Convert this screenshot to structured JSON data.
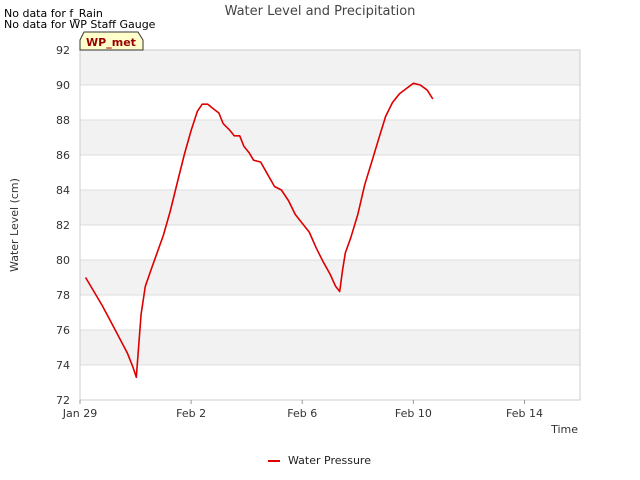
{
  "notices": [
    "No data for f_Rain",
    "No data for WP Staff Gauge"
  ],
  "chart_data": {
    "type": "line",
    "title": "Water Level and Precipitation",
    "xlabel": "Time",
    "ylabel": "Water Level (cm)",
    "ylim": [
      72,
      92
    ],
    "yticks": [
      72,
      74,
      76,
      78,
      80,
      82,
      84,
      86,
      88,
      90,
      92
    ],
    "xlim": [
      "Jan 29",
      "Feb 16"
    ],
    "xticks": [
      {
        "label": "Jan 29",
        "day": 0
      },
      {
        "label": "Feb 2",
        "day": 4
      },
      {
        "label": "Feb 6",
        "day": 8
      },
      {
        "label": "Feb 10",
        "day": 12
      },
      {
        "label": "Feb 14",
        "day": 16
      }
    ],
    "site_badge": "WP_met",
    "grid": true,
    "legend_position": "bottom",
    "series": [
      {
        "name": "Water Pressure",
        "color": "#dd0000",
        "points": [
          [
            0.4,
            79.0
          ],
          [
            1.0,
            78.2
          ],
          [
            1.6,
            77.4
          ],
          [
            2.2,
            76.5
          ],
          [
            2.8,
            75.6
          ],
          [
            3.4,
            74.7
          ],
          [
            3.8,
            73.9
          ],
          [
            4.05,
            73.3
          ],
          [
            4.2,
            74.8
          ],
          [
            4.4,
            76.9
          ],
          [
            4.7,
            78.5
          ],
          [
            5.1,
            79.4
          ],
          [
            5.5,
            80.3
          ],
          [
            6.0,
            81.4
          ],
          [
            6.5,
            82.8
          ],
          [
            7.0,
            84.4
          ],
          [
            7.5,
            86.0
          ],
          [
            8.0,
            87.4
          ],
          [
            8.45,
            88.5
          ],
          [
            8.8,
            88.9
          ],
          [
            9.2,
            88.9
          ],
          [
            9.5,
            88.7
          ],
          [
            10.0,
            88.4
          ],
          [
            10.3,
            87.8
          ],
          [
            10.8,
            87.4
          ],
          [
            11.1,
            87.1
          ],
          [
            11.5,
            87.1
          ],
          [
            11.8,
            86.5
          ],
          [
            12.2,
            86.1
          ],
          [
            12.5,
            85.7
          ],
          [
            13.0,
            85.6
          ],
          [
            13.5,
            84.9
          ],
          [
            14.0,
            84.2
          ],
          [
            14.5,
            84.0
          ],
          [
            15.0,
            83.4
          ],
          [
            15.5,
            82.6
          ],
          [
            16.0,
            82.1
          ],
          [
            16.5,
            81.6
          ],
          [
            17.0,
            80.7
          ],
          [
            17.5,
            79.9
          ],
          [
            18.0,
            79.2
          ],
          [
            18.4,
            78.5
          ],
          [
            18.7,
            78.2
          ],
          [
            18.9,
            79.4
          ],
          [
            19.1,
            80.4
          ],
          [
            19.5,
            81.3
          ],
          [
            20.0,
            82.6
          ],
          [
            20.5,
            84.3
          ],
          [
            21.0,
            85.6
          ],
          [
            21.5,
            86.9
          ],
          [
            22.0,
            88.2
          ],
          [
            22.5,
            89.0
          ],
          [
            23.0,
            89.5
          ],
          [
            23.5,
            89.8
          ],
          [
            24.0,
            90.1
          ],
          [
            24.5,
            90.0
          ],
          [
            25.0,
            89.7
          ],
          [
            25.4,
            89.2
          ]
        ]
      }
    ]
  }
}
